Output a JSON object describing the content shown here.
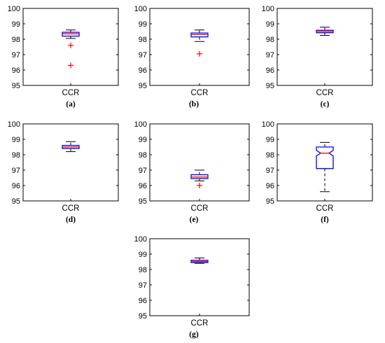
{
  "chart_data": [
    {
      "type": "box",
      "caption": "(a)",
      "xlabel": "CCR",
      "ylim": [
        95,
        100
      ],
      "yticks": [
        95,
        96,
        97,
        98,
        99,
        100
      ],
      "box": {
        "whisker_low": 98.05,
        "q1": 98.2,
        "median": 98.35,
        "q3": 98.45,
        "whisker_high": 98.6,
        "notched": false,
        "outliers": [
          97.6,
          96.3
        ]
      }
    },
    {
      "type": "box",
      "caption": "(b)",
      "xlabel": "CCR",
      "ylim": [
        95,
        100
      ],
      "yticks": [
        95,
        96,
        97,
        98,
        99,
        100
      ],
      "box": {
        "whisker_low": 97.85,
        "q1": 98.15,
        "median": 98.3,
        "q3": 98.4,
        "whisker_high": 98.6,
        "notched": false,
        "outliers": [
          97.05
        ]
      }
    },
    {
      "type": "box",
      "caption": "(c)",
      "xlabel": "CCR",
      "ylim": [
        95,
        100
      ],
      "yticks": [
        95,
        96,
        97,
        98,
        99,
        100
      ],
      "box": {
        "whisker_low": 98.25,
        "q1": 98.42,
        "median": 98.5,
        "q3": 98.58,
        "whisker_high": 98.78,
        "notched": false,
        "outliers": []
      }
    },
    {
      "type": "box",
      "caption": "(d)",
      "xlabel": "CCR",
      "ylim": [
        95,
        100
      ],
      "yticks": [
        95,
        96,
        97,
        98,
        99,
        100
      ],
      "box": {
        "whisker_low": 98.2,
        "q1": 98.4,
        "median": 98.5,
        "q3": 98.6,
        "whisker_high": 98.85,
        "notched": false,
        "outliers": []
      }
    },
    {
      "type": "box",
      "caption": "(e)",
      "xlabel": "CCR",
      "ylim": [
        95,
        100
      ],
      "yticks": [
        95,
        96,
        97,
        98,
        99,
        100
      ],
      "box": {
        "whisker_low": 96.3,
        "q1": 96.45,
        "median": 96.55,
        "q3": 96.7,
        "whisker_high": 97.0,
        "notched": false,
        "outliers": [
          96.0
        ]
      }
    },
    {
      "type": "box",
      "caption": "(f)",
      "xlabel": "CCR",
      "ylim": [
        95,
        100
      ],
      "yticks": [
        95,
        96,
        97,
        98,
        99,
        100
      ],
      "box": {
        "whisker_low": 95.6,
        "q1": 97.1,
        "median": 98.1,
        "q3": 98.5,
        "whisker_high": 98.8,
        "notched": true,
        "outliers": []
      }
    },
    {
      "type": "box",
      "caption": "(g)",
      "xlabel": "CCR",
      "ylim": [
        95,
        100
      ],
      "yticks": [
        95,
        96,
        97,
        98,
        99,
        100
      ],
      "box": {
        "whisker_low": 98.4,
        "q1": 98.45,
        "median": 98.52,
        "q3": 98.6,
        "whisker_high": 98.75,
        "notched": false,
        "outliers": []
      }
    }
  ],
  "colors": {
    "box": "#0000ff",
    "median": "#ff0000",
    "whisker": "#000000",
    "outlier": "#ff0000",
    "axes": "#000000"
  }
}
